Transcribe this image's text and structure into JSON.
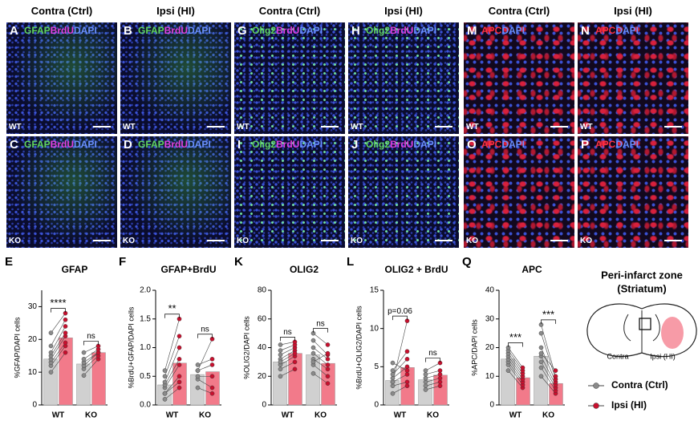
{
  "column_headers": [
    "Contra (Ctrl)",
    "Ipsi (HI)",
    "Contra (Ctrl)",
    "Ipsi (HI)",
    "Contra (Ctrl)",
    "Ipsi (HI)"
  ],
  "panels": [
    {
      "letter": "A",
      "stain": [
        {
          "text": "GFAP",
          "color": "#5fd35f"
        },
        {
          "text": "BrdU",
          "color": "#e040e0"
        },
        {
          "text": "DAPI",
          "color": "#6a90ff"
        }
      ],
      "genotype": "WT"
    },
    {
      "letter": "B",
      "stain": [
        {
          "text": "GFAP",
          "color": "#5fd35f"
        },
        {
          "text": "BrdU",
          "color": "#e040e0"
        },
        {
          "text": "DAPI",
          "color": "#6a90ff"
        }
      ],
      "genotype": "WT"
    },
    {
      "letter": "G",
      "stain": [
        {
          "text": "Olig2",
          "color": "#5fd35f"
        },
        {
          "text": "BrdU",
          "color": "#e040e0"
        },
        {
          "text": "DAPI",
          "color": "#6a90ff"
        }
      ],
      "genotype": "WT"
    },
    {
      "letter": "H",
      "stain": [
        {
          "text": "Olig2",
          "color": "#5fd35f"
        },
        {
          "text": "BrdU",
          "color": "#e040e0"
        },
        {
          "text": "DAPI",
          "color": "#6a90ff"
        }
      ],
      "genotype": "WT"
    },
    {
      "letter": "M",
      "stain": [
        {
          "text": "APC",
          "color": "#ff3040"
        },
        {
          "text": "DAPI",
          "color": "#6a90ff"
        }
      ],
      "genotype": "WT"
    },
    {
      "letter": "N",
      "stain": [
        {
          "text": "APC",
          "color": "#ff3040"
        },
        {
          "text": "DAPI",
          "color": "#6a90ff"
        }
      ],
      "genotype": "WT"
    },
    {
      "letter": "C",
      "stain": [
        {
          "text": "GFAP",
          "color": "#5fd35f"
        },
        {
          "text": "BrdU",
          "color": "#e040e0"
        },
        {
          "text": "DAPI",
          "color": "#6a90ff"
        }
      ],
      "genotype": "KO"
    },
    {
      "letter": "D",
      "stain": [
        {
          "text": "GFAP",
          "color": "#5fd35f"
        },
        {
          "text": "BrdU",
          "color": "#e040e0"
        },
        {
          "text": "DAPI",
          "color": "#6a90ff"
        }
      ],
      "genotype": "KO"
    },
    {
      "letter": "I",
      "stain": [
        {
          "text": "Olig2",
          "color": "#5fd35f"
        },
        {
          "text": "BrdU",
          "color": "#e040e0"
        },
        {
          "text": "DAPI",
          "color": "#6a90ff"
        }
      ],
      "genotype": "KO"
    },
    {
      "letter": "J",
      "stain": [
        {
          "text": "Olig2",
          "color": "#5fd35f"
        },
        {
          "text": "BrdU",
          "color": "#e040e0"
        },
        {
          "text": "DAPI",
          "color": "#6a90ff"
        }
      ],
      "genotype": "KO"
    },
    {
      "letter": "O",
      "stain": [
        {
          "text": "APC",
          "color": "#ff3040"
        },
        {
          "text": "DAPI",
          "color": "#6a90ff"
        }
      ],
      "genotype": "KO"
    },
    {
      "letter": "P",
      "stain": [
        {
          "text": "APC",
          "color": "#ff3040"
        },
        {
          "text": "DAPI",
          "color": "#6a90ff"
        }
      ],
      "genotype": "KO"
    }
  ],
  "legend": [
    {
      "name": "Contra (Ctrl)",
      "color": "#d0d0d0",
      "point_color": "#8a8a8a"
    },
    {
      "name": "Ipsi (HI)",
      "color": "#f27a8a",
      "point_color": "#c8102e"
    }
  ],
  "chart_data": [
    {
      "type": "bar",
      "letter": "E",
      "title": "GFAP",
      "y_label": "%GFAP/DAPI cells",
      "categories": [
        "WT",
        "KO"
      ],
      "ylim": [
        0,
        35
      ],
      "yticks": [
        0,
        10,
        20,
        30
      ],
      "annotations": [
        "****",
        "ns"
      ],
      "series": [
        {
          "values": [
            14,
            12.5
          ],
          "points": [
            [
              10,
              12,
              13,
              14,
              15,
              16,
              18,
              22
            ],
            [
              9,
              11,
              12,
              13,
              14,
              16
            ]
          ]
        },
        {
          "values": [
            20.5,
            16
          ],
          "points": [
            [
              16,
              18,
              19,
              21,
              22,
              24,
              26,
              28
            ],
            [
              14,
              15,
              16,
              16,
              17,
              18
            ]
          ]
        }
      ]
    },
    {
      "type": "bar",
      "letter": "F",
      "title": "GFAP+BrdU",
      "y_label": "%BrdU+GFAP/DAPI cells",
      "categories": [
        "WT",
        "KO"
      ],
      "ylim": [
        0,
        2
      ],
      "yticks": [
        {
          "value": 0,
          "label": "0.0"
        },
        0.5,
        {
          "value": 1,
          "label": "1.0"
        },
        1.5,
        {
          "value": 2,
          "label": "2.0"
        }
      ],
      "annotations": [
        "**",
        "ns"
      ],
      "series": [
        {
          "values": [
            0.35,
            0.53
          ],
          "points": [
            [
              0.1,
              0.2,
              0.3,
              0.35,
              0.4,
              0.5,
              0.6,
              0.2
            ],
            [
              0.3,
              0.45,
              0.5,
              0.6,
              0.7,
              0.6
            ]
          ]
        },
        {
          "values": [
            0.73,
            0.58
          ],
          "points": [
            [
              0.3,
              0.5,
              0.7,
              0.8,
              1.0,
              1.2,
              1.5,
              0.4
            ],
            [
              0.2,
              0.3,
              0.5,
              0.7,
              0.8,
              1.15
            ]
          ]
        }
      ]
    },
    {
      "type": "bar",
      "letter": "K",
      "title": "OLIG2",
      "y_label": "%OLIG2/DAPI cells",
      "categories": [
        "WT",
        "KO"
      ],
      "ylim": [
        0,
        80
      ],
      "yticks": [
        0,
        20,
        40,
        60,
        80
      ],
      "annotations": [
        "ns",
        "ns"
      ],
      "series": [
        {
          "values": [
            30,
            35
          ],
          "points": [
            [
              20,
              25,
              28,
              32,
              35,
              38,
              30,
              42
            ],
            [
              22,
              28,
              32,
              36,
              40,
              45,
              50,
              30
            ]
          ]
        },
        {
          "values": [
            36,
            29
          ],
          "points": [
            [
              25,
              30,
              34,
              38,
              40,
              42,
              36,
              44
            ],
            [
              15,
              20,
              25,
              28,
              32,
              35,
              42,
              36
            ]
          ]
        }
      ]
    },
    {
      "type": "bar",
      "letter": "L",
      "title": "OLIG2 + BrdU",
      "y_label": "%BrdU+OLIG2/DAPI cells",
      "categories": [
        "WT",
        "KO"
      ],
      "ylim": [
        0,
        15
      ],
      "yticks": [
        0,
        5,
        10,
        15
      ],
      "annotations": [
        "p=0.06",
        "ns"
      ],
      "series": [
        {
          "values": [
            3.2,
            3.3
          ],
          "points": [
            [
              1.5,
              2.5,
              3,
              3.5,
              4,
              4.5,
              3,
              5.5
            ],
            [
              2,
              2.5,
              3,
              3.5,
              4,
              4.5
            ]
          ]
        },
        {
          "values": [
            4.9,
            3.9
          ],
          "points": [
            [
              2.5,
              3,
              4,
              5,
              6,
              7,
              11,
              4.5
            ],
            [
              2.5,
              3,
              3.5,
              4,
              4.5,
              5.5
            ]
          ]
        }
      ]
    },
    {
      "type": "bar",
      "letter": "Q",
      "title": "APC",
      "y_label": "%APC/DAPI cells",
      "categories": [
        "WT",
        "KO"
      ],
      "ylim": [
        0,
        40
      ],
      "yticks": [
        0,
        10,
        20,
        30,
        40
      ],
      "annotations": [
        "***",
        "***"
      ],
      "series": [
        {
          "values": [
            16,
            17
          ],
          "points": [
            [
              12,
              14,
              15,
              16,
              17,
              18,
              19,
              20
            ],
            [
              10,
              13,
              15,
              17,
              20,
              25,
              28,
              18
            ]
          ]
        },
        {
          "values": [
            9.5,
            7.5
          ],
          "points": [
            [
              6,
              7,
              8,
              9,
              10,
              11,
              12,
              13
            ],
            [
              4,
              5,
              6,
              7,
              8,
              9,
              10,
              12
            ]
          ]
        }
      ]
    }
  ],
  "diagram": {
    "title_lines": [
      "Peri-infarct zone",
      "(Striatum)"
    ],
    "left_label": "Contra",
    "right_label": "Ipsi (HI)"
  }
}
